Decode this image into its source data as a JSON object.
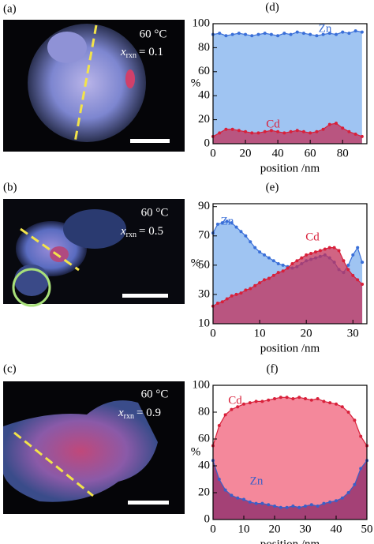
{
  "images": [
    {
      "label": "(a)",
      "temperature": "60 °C",
      "x_symbol": "x",
      "x_subscript": "rxn",
      "x_value": "= 0.1"
    },
    {
      "label": "(b)",
      "temperature": "60 °C",
      "x_symbol": "x",
      "x_subscript": "rxn",
      "x_value": "= 0.5"
    },
    {
      "label": "(c)",
      "temperature": "60 °C",
      "x_symbol": "x",
      "x_subscript": "rxn",
      "x_value": "= 0.9"
    }
  ],
  "chart_data": [
    {
      "type": "area",
      "panel_label": "(d)",
      "xlabel": "position /nm",
      "ylabel": "%",
      "xlim": [
        0,
        95
      ],
      "ylim": [
        0,
        100
      ],
      "xticks": [
        0,
        20,
        40,
        60,
        80
      ],
      "yticks": [
        0,
        20,
        40,
        60,
        80,
        100
      ],
      "x": [
        0,
        4,
        8,
        12,
        16,
        20,
        24,
        28,
        32,
        36,
        40,
        44,
        48,
        52,
        56,
        60,
        64,
        68,
        72,
        76,
        80,
        84,
        88,
        92
      ],
      "series": [
        {
          "name": "Zn",
          "color": "#3a6fd8",
          "fill_color": "#7fb0ee",
          "values": [
            91,
            92,
            90,
            91,
            92,
            91,
            90,
            91,
            92,
            91,
            90,
            92,
            91,
            93,
            92,
            91,
            90,
            91,
            92,
            91,
            93,
            92,
            94,
            93
          ]
        },
        {
          "name": "Cd",
          "color": "#d8203a",
          "fill_color": "#c2305a",
          "values": [
            6,
            9,
            12,
            12,
            11,
            10,
            9,
            9,
            10,
            11,
            10,
            9,
            10,
            11,
            10,
            9,
            10,
            12,
            16,
            17,
            13,
            10,
            8,
            6
          ]
        }
      ]
    },
    {
      "type": "area",
      "panel_label": "(e)",
      "xlabel": "position /nm",
      "ylabel": "%",
      "xlim": [
        0,
        33
      ],
      "ylim": [
        10,
        92
      ],
      "xticks": [
        0,
        10,
        20,
        30
      ],
      "yticks": [
        10,
        30,
        50,
        70,
        90
      ],
      "x": [
        0,
        1,
        2,
        3,
        4,
        5,
        6,
        7,
        8,
        9,
        10,
        11,
        12,
        13,
        14,
        15,
        16,
        17,
        18,
        19,
        20,
        21,
        22,
        23,
        24,
        25,
        26,
        27,
        28,
        29,
        30,
        31,
        32
      ],
      "series": [
        {
          "name": "Zn",
          "color": "#3a6fd8",
          "fill_color": "#7fb0ee",
          "values": [
            72,
            78,
            79,
            80,
            79,
            76,
            73,
            70,
            66,
            62,
            59,
            57,
            55,
            53,
            51,
            50,
            49,
            48,
            49,
            51,
            53,
            54,
            55,
            56,
            57,
            55,
            52,
            47,
            45,
            50,
            57,
            62,
            52
          ]
        },
        {
          "name": "Cd",
          "color": "#d8203a",
          "fill_color": "#c2305a",
          "values": [
            22,
            24,
            25,
            27,
            29,
            30,
            31,
            33,
            34,
            36,
            38,
            40,
            41,
            43,
            45,
            46,
            48,
            51,
            53,
            55,
            57,
            58,
            59,
            60,
            61,
            62,
            62,
            60,
            53,
            47,
            43,
            40,
            37
          ]
        }
      ]
    },
    {
      "type": "area",
      "panel_label": "(f)",
      "xlabel": "position /nm",
      "ylabel": "%",
      "xlim": [
        0,
        50
      ],
      "ylim": [
        0,
        100
      ],
      "xticks": [
        0,
        10,
        20,
        30,
        40,
        50
      ],
      "yticks": [
        0,
        20,
        40,
        60,
        80,
        100
      ],
      "x": [
        0,
        2,
        4,
        6,
        8,
        10,
        12,
        14,
        16,
        18,
        20,
        22,
        24,
        26,
        28,
        30,
        32,
        34,
        36,
        38,
        40,
        42,
        44,
        46,
        48,
        50
      ],
      "series": [
        {
          "name": "Cd",
          "color": "#d8203a",
          "fill_color": "#f0607a",
          "values": [
            55,
            70,
            78,
            82,
            84,
            86,
            87,
            88,
            88,
            89,
            90,
            91,
            91,
            90,
            91,
            90,
            89,
            90,
            88,
            87,
            86,
            84,
            80,
            74,
            62,
            55
          ]
        },
        {
          "name": "Zn",
          "color": "#3a5fc8",
          "fill_color": "#8a2a6a",
          "values": [
            44,
            30,
            22,
            18,
            16,
            15,
            13,
            12,
            12,
            11,
            10,
            9,
            9,
            10,
            9,
            10,
            11,
            10,
            12,
            13,
            14,
            16,
            20,
            26,
            38,
            44
          ]
        }
      ]
    }
  ]
}
